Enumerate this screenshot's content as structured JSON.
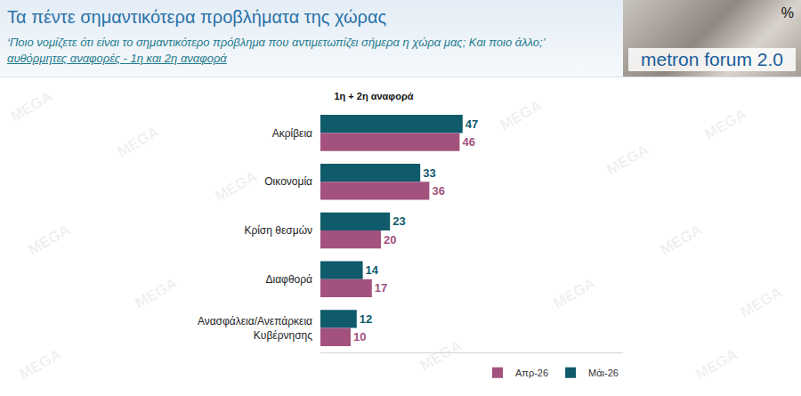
{
  "header": {
    "title": "Τα πέντε σημαντικότερα προβλήματα της χώρας",
    "subtitle": [
      "‘Ποιο νομίζετε ότι είναι το σημαντικότερο πρόβλημα που αντιμετωπίζει σήμερα η χώρα μας; Και ποιο άλλο;’",
      "αυθόρμητες αναφορές - 1η και 2η αναφορά"
    ],
    "unit": "%",
    "logo": "metron forum 2.0",
    "watermark": "MEGA"
  },
  "chart_data": {
    "type": "bar",
    "orientation": "horizontal",
    "title": "1η + 2η αναφορά",
    "categories": [
      "Ακρίβεια",
      "Οικονομία",
      "Κρίση θεσμών",
      "Διαφθορά",
      "Ανασφάλεια/Ανεπάρκεια Κυβέρνησης"
    ],
    "series": [
      {
        "name": "Απρ-26",
        "color": "#a3527e",
        "values": [
          46,
          36,
          20,
          17,
          10
        ]
      },
      {
        "name": "Μάι-26",
        "color": "#0f5a6b",
        "values": [
          47,
          33,
          23,
          14,
          12
        ]
      }
    ],
    "xlim": [
      0,
      100
    ],
    "tick_labels": "y",
    "data_labels": true,
    "legend": "bottom right",
    "grid": false
  }
}
